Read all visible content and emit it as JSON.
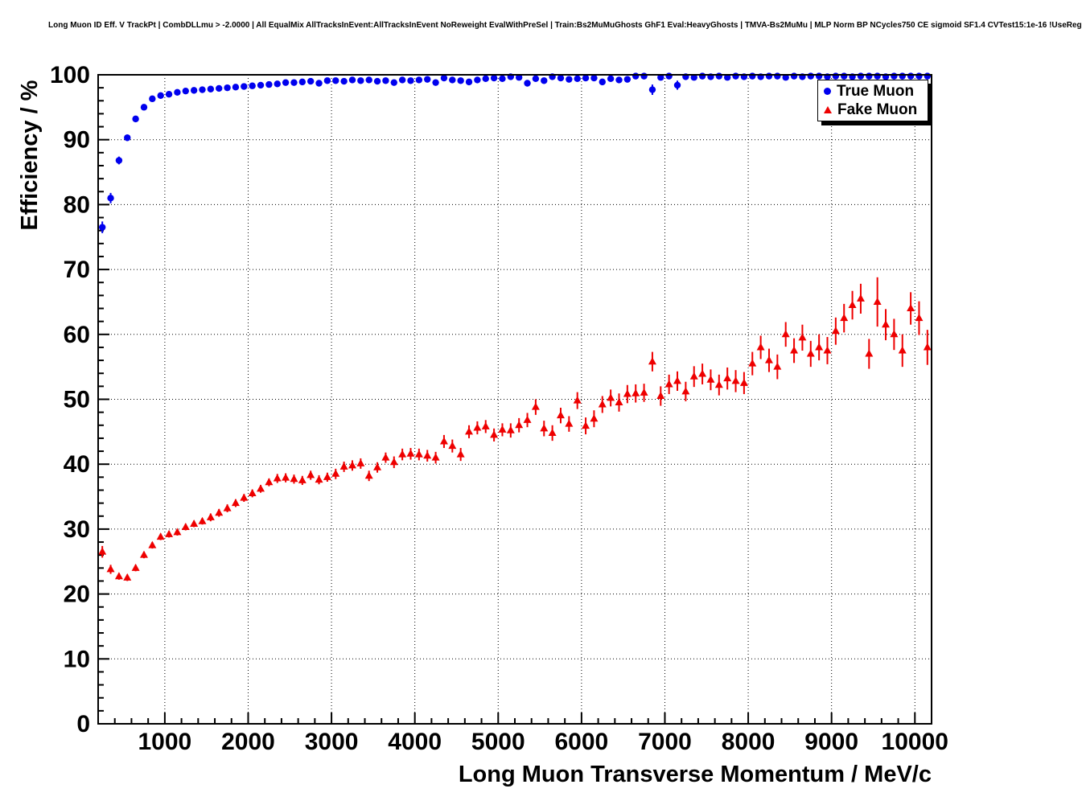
{
  "title": "Long Muon ID Eff. V TrackPt | CombDLLmu > -2.0000 | All EqualMix AllTracksInEvent:AllTracksInEvent NoReweight EvalWithPreSel | Train:Bs2MuMuGhosts GhF1 Eval:HeavyGhosts | TMVA-Bs2MuMu | MLP Norm BP NCycles750 CE sigmoid SF1.4 CVTest15:1e-16 !UseReg",
  "chart_data": {
    "type": "scatter",
    "title": "Long Muon ID Eff. V TrackPt",
    "xlabel": "Long Muon Transverse Momentum / MeV/c",
    "ylabel": "Efficiency / %",
    "xlim": [
      200,
      10200
    ],
    "ylim": [
      0,
      100
    ],
    "xticks": [
      1000,
      2000,
      3000,
      4000,
      5000,
      6000,
      7000,
      8000,
      9000,
      10000
    ],
    "yticks": [
      0,
      10,
      20,
      30,
      40,
      50,
      60,
      70,
      80,
      90,
      100
    ],
    "grid": true,
    "legend_position": "top-right",
    "x": [
      250,
      350,
      450,
      550,
      650,
      750,
      850,
      950,
      1050,
      1150,
      1250,
      1350,
      1450,
      1550,
      1650,
      1750,
      1850,
      1950,
      2050,
      2150,
      2250,
      2350,
      2450,
      2550,
      2650,
      2750,
      2850,
      2950,
      3050,
      3150,
      3250,
      3350,
      3450,
      3550,
      3650,
      3750,
      3850,
      3950,
      4050,
      4150,
      4250,
      4350,
      4450,
      4550,
      4650,
      4750,
      4850,
      4950,
      5050,
      5150,
      5250,
      5350,
      5450,
      5550,
      5650,
      5750,
      5850,
      5950,
      6050,
      6150,
      6250,
      6350,
      6450,
      6550,
      6650,
      6750,
      6850,
      6950,
      7050,
      7150,
      7250,
      7350,
      7450,
      7550,
      7650,
      7750,
      7850,
      7950,
      8050,
      8150,
      8250,
      8350,
      8450,
      8550,
      8650,
      8750,
      8850,
      8950,
      9050,
      9150,
      9250,
      9350,
      9450,
      9550,
      9650,
      9750,
      9850,
      9950,
      10050,
      10150
    ],
    "series": [
      {
        "name": "True Muon",
        "color": "#0000ee",
        "marker": "circle",
        "y": [
          76.5,
          81.0,
          86.8,
          90.3,
          93.2,
          95.0,
          96.3,
          96.8,
          97.0,
          97.3,
          97.5,
          97.6,
          97.7,
          97.8,
          97.9,
          98.0,
          98.1,
          98.2,
          98.3,
          98.4,
          98.5,
          98.6,
          98.8,
          98.8,
          98.9,
          99.0,
          98.7,
          99.1,
          99.1,
          99.0,
          99.2,
          99.1,
          99.2,
          99.0,
          99.1,
          98.8,
          99.2,
          99.1,
          99.2,
          99.3,
          98.8,
          99.5,
          99.2,
          99.1,
          98.9,
          99.2,
          99.4,
          99.5,
          99.4,
          99.7,
          99.6,
          98.7,
          99.4,
          99.1,
          99.7,
          99.5,
          99.3,
          99.4,
          99.5,
          99.5,
          98.9,
          99.4,
          99.2,
          99.3,
          99.8,
          99.8,
          97.7,
          99.6,
          99.8,
          98.4,
          99.7,
          99.6,
          99.8,
          99.7,
          99.8,
          99.6,
          99.8,
          99.7,
          99.8,
          99.7,
          99.8,
          99.8,
          99.6,
          99.8,
          99.7,
          99.8,
          99.8,
          99.7,
          99.8,
          99.8,
          99.7,
          99.8,
          99.8,
          99.8,
          99.7,
          99.8,
          99.8,
          99.8,
          99.8,
          99.8
        ],
        "yerr": [
          0.9,
          0.8,
          0.6,
          0.5,
          0.45,
          0.4,
          0.35,
          0.3,
          0.3,
          0.3,
          0.3,
          0.3,
          0.3,
          0.3,
          0.3,
          0.3,
          0.3,
          0.3,
          0.3,
          0.3,
          0.3,
          0.3,
          0.3,
          0.3,
          0.3,
          0.3,
          0.35,
          0.3,
          0.3,
          0.3,
          0.3,
          0.3,
          0.3,
          0.3,
          0.3,
          0.4,
          0.3,
          0.3,
          0.3,
          0.3,
          0.4,
          0.3,
          0.3,
          0.35,
          0.4,
          0.3,
          0.3,
          0.3,
          0.3,
          0.2,
          0.25,
          0.5,
          0.3,
          0.4,
          0.2,
          0.3,
          0.35,
          0.3,
          0.3,
          0.3,
          0.5,
          0.35,
          0.4,
          0.4,
          0.2,
          0.2,
          0.8,
          0.3,
          0.2,
          0.7,
          0.3,
          0.3,
          0.2,
          0.3,
          0.2,
          0.3,
          0.2,
          0.3,
          0.2,
          0.3,
          0.2,
          0.2,
          0.3,
          0.2,
          0.3,
          0.2,
          0.2,
          0.3,
          0.2,
          0.2,
          0.3,
          0.2,
          0.2,
          0.2,
          0.3,
          0.2,
          0.2,
          0.2,
          0.2,
          0.2
        ]
      },
      {
        "name": "Fake Muon",
        "color": "#ee0000",
        "marker": "triangle",
        "y": [
          26.5,
          23.8,
          22.7,
          22.5,
          24.0,
          26.0,
          27.5,
          28.8,
          29.2,
          29.5,
          30.3,
          30.8,
          31.2,
          31.8,
          32.5,
          33.2,
          34.0,
          34.8,
          35.5,
          36.2,
          37.2,
          37.8,
          37.9,
          37.7,
          37.5,
          38.3,
          37.6,
          38.0,
          38.5,
          39.6,
          39.8,
          40.1,
          38.2,
          39.5,
          41.0,
          40.3,
          41.5,
          41.6,
          41.5,
          41.3,
          41.0,
          43.5,
          42.8,
          41.5,
          45.0,
          45.6,
          45.8,
          44.5,
          45.3,
          45.2,
          46.0,
          46.8,
          48.8,
          45.5,
          44.8,
          47.5,
          46.2,
          49.8,
          45.9,
          47.0,
          49.2,
          50.2,
          49.5,
          50.8,
          50.9,
          51.0,
          55.8,
          50.5,
          52.3,
          52.8,
          51.2,
          53.5,
          53.9,
          53.0,
          52.2,
          53.2,
          52.8,
          52.5,
          55.5,
          58.0,
          56.0,
          55.0,
          60.0,
          57.5,
          59.5,
          57.0,
          58.0,
          57.5,
          60.5,
          62.5,
          64.5,
          65.5,
          57.0,
          65.0,
          61.5,
          60.0,
          57.5,
          64.0,
          62.5,
          58.0
        ],
        "yerr": [
          0.9,
          0.7,
          0.5,
          0.5,
          0.5,
          0.5,
          0.5,
          0.5,
          0.5,
          0.5,
          0.5,
          0.5,
          0.5,
          0.6,
          0.6,
          0.6,
          0.6,
          0.6,
          0.6,
          0.6,
          0.6,
          0.7,
          0.7,
          0.7,
          0.7,
          0.7,
          0.7,
          0.7,
          0.8,
          0.8,
          0.8,
          0.8,
          0.8,
          0.8,
          0.8,
          0.9,
          0.9,
          0.9,
          0.9,
          0.9,
          0.9,
          1.0,
          1.0,
          1.0,
          1.0,
          1.0,
          1.0,
          1.0,
          1.0,
          1.1,
          1.1,
          1.1,
          1.2,
          1.2,
          1.2,
          1.2,
          1.2,
          1.3,
          1.3,
          1.3,
          1.3,
          1.3,
          1.4,
          1.4,
          1.4,
          1.4,
          1.5,
          1.5,
          1.5,
          1.5,
          1.5,
          1.6,
          1.6,
          1.6,
          1.6,
          1.7,
          1.7,
          1.7,
          1.8,
          1.8,
          1.8,
          1.9,
          1.9,
          1.9,
          2.0,
          2.0,
          2.0,
          2.1,
          2.1,
          2.2,
          2.2,
          2.3,
          2.3,
          3.8,
          2.4,
          2.4,
          2.5,
          2.5,
          2.6,
          2.7
        ]
      }
    ]
  }
}
